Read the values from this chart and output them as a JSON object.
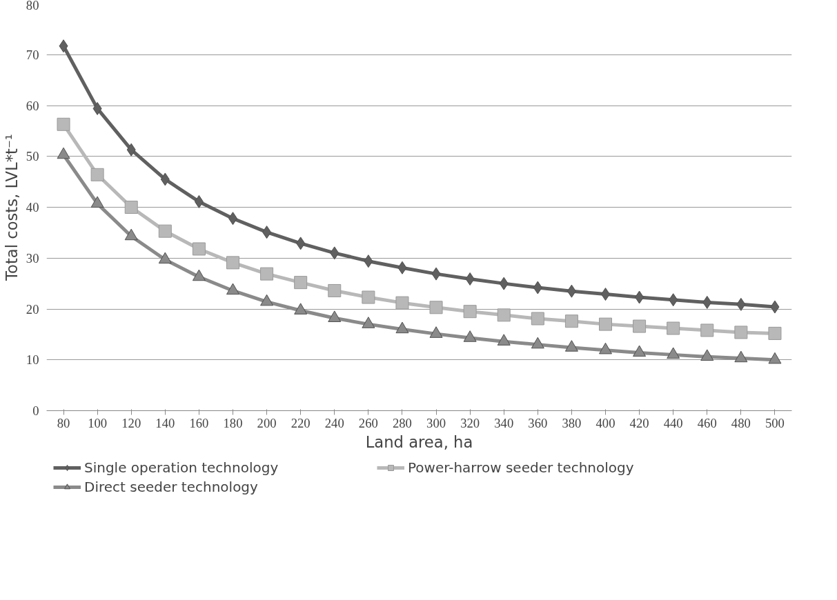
{
  "chart_data": {
    "type": "line",
    "xlabel": "Land area, ha",
    "ylabel": "Total costs, LVL*t⁻¹",
    "categories": [
      "80",
      "100",
      "120",
      "140",
      "160",
      "180",
      "200",
      "220",
      "240",
      "260",
      "280",
      "300",
      "320",
      "340",
      "360",
      "380",
      "400",
      "420",
      "440",
      "460",
      "480",
      "500"
    ],
    "ylim": [
      0,
      80
    ],
    "yticks": [
      0,
      10,
      20,
      30,
      40,
      50,
      60,
      70,
      80
    ],
    "grid": "y",
    "legend": "bottom",
    "series": [
      {
        "name": "Single operation technology",
        "color": "#606060",
        "marker": "diamond",
        "values": [
          71.7,
          59.4,
          51.3,
          45.5,
          41.1,
          37.8,
          35.1,
          32.9,
          31.0,
          29.4,
          28.1,
          26.9,
          25.9,
          25.0,
          24.2,
          23.5,
          22.9,
          22.3,
          21.8,
          21.3,
          20.9,
          20.4
        ]
      },
      {
        "name": "Power-harrow seeder technology",
        "color": "#b8b8b8",
        "marker": "square",
        "values": [
          56.3,
          46.4,
          40.0,
          35.3,
          31.8,
          29.1,
          26.9,
          25.2,
          23.6,
          22.3,
          21.2,
          20.3,
          19.5,
          18.8,
          18.1,
          17.6,
          17.0,
          16.6,
          16.2,
          15.8,
          15.4,
          15.2
        ]
      },
      {
        "name": "Direct seeder technology",
        "color": "#8a8a8a",
        "marker": "triangle",
        "values": [
          50.3,
          40.7,
          34.3,
          29.7,
          26.3,
          23.6,
          21.4,
          19.7,
          18.2,
          17.0,
          16.0,
          15.1,
          14.3,
          13.6,
          13.0,
          12.4,
          11.9,
          11.4,
          11.0,
          10.6,
          10.3,
          10.0
        ]
      }
    ]
  }
}
